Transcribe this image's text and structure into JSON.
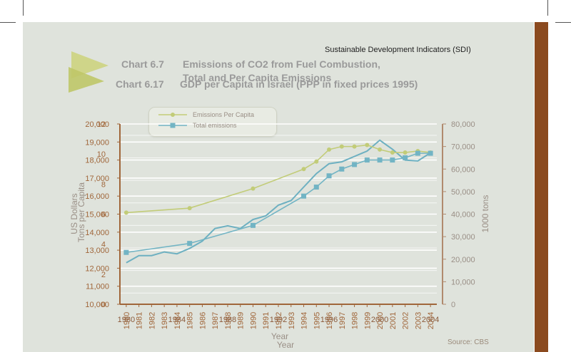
{
  "header": {
    "title": "Sustainable Development Indicators (SDI)"
  },
  "titles": {
    "chart_a_num": "Chart 6.7",
    "chart_a_title_line1": "Emissions of CO2 from Fuel Combustion,",
    "chart_a_title_line2": "Total and Per Capita Emissions",
    "chart_b_num": "Chart 6.17",
    "chart_b_title": "GDP per Capita in Israel (PPP in fixed prices 1995)"
  },
  "source": "Source: CBS",
  "colors": {
    "panel": "#dfe3dc",
    "accent": "#8b4a1f",
    "axis": "#a0663a",
    "emissions_per_capita": "#c2cc78",
    "total_emissions": "#72b4c4",
    "gdp": "#6db0c1"
  },
  "chart_data": [
    {
      "type": "line",
      "title": "Emissions of CO2 from Fuel Combustion, Total and Per Capita Emissions",
      "xlabel": "Year",
      "ylabel_left": "Tons per Capita",
      "ylabel_right": "1000 tons",
      "x_ticks": [
        "1980",
        "1984",
        "1988",
        "1992",
        "1996",
        "2000",
        "2004"
      ],
      "ylim_left": [
        0,
        12
      ],
      "yticks_left": [
        "0",
        "2",
        "4",
        "6",
        "8",
        "10",
        "12"
      ],
      "ylim_right": [
        0,
        80000
      ],
      "yticks_right": [
        "0",
        "10,000",
        "20,000",
        "30,000",
        "40,000",
        "50,000",
        "60,000",
        "70,000",
        "80,000"
      ],
      "legend_position": "top-left",
      "series": [
        {
          "name": "Emissions Per Capita",
          "axis": "left",
          "x": [
            1980,
            1985,
            1990,
            1994,
            1995,
            1996,
            1997,
            1998,
            1999,
            2000,
            2001,
            2002,
            2003,
            2004
          ],
          "values": [
            6.1,
            6.4,
            7.7,
            9.0,
            9.5,
            10.3,
            10.5,
            10.5,
            10.6,
            10.3,
            10.1,
            10.1,
            10.2,
            10.1
          ]
        },
        {
          "name": "Total emissions",
          "axis": "right",
          "x": [
            1980,
            1985,
            1990,
            1994,
            1995,
            1996,
            1997,
            1998,
            1999,
            2000,
            2001,
            2002,
            2003,
            2004
          ],
          "values": [
            23000,
            27000,
            35000,
            48000,
            52000,
            57000,
            60000,
            62000,
            64000,
            64000,
            64000,
            65000,
            67000,
            67000
          ]
        }
      ]
    },
    {
      "type": "line",
      "title": "GDP per Capita in Israel (PPP in fixed prices 1995)",
      "xlabel": "Year",
      "ylabel": "US Dollars",
      "ylim": [
        10000,
        20000
      ],
      "yticks": [
        "10,000",
        "11,000",
        "12,000",
        "13,000",
        "14,000",
        "15,000",
        "16,000",
        "17,000",
        "18,000",
        "19,000",
        "20,000"
      ],
      "categories": [
        "1980",
        "1981",
        "1982",
        "1983",
        "1984",
        "1985",
        "1986",
        "1987",
        "1988",
        "1989",
        "1990",
        "1991",
        "1992",
        "1993",
        "1994",
        "1995",
        "1996",
        "1997",
        "1998",
        "1999",
        "2000",
        "2001",
        "2002",
        "2003",
        "2004"
      ],
      "series": [
        {
          "name": "",
          "values": [
            12300,
            12700,
            12700,
            12900,
            12800,
            13100,
            13500,
            14200,
            14350,
            14200,
            14700,
            14900,
            15500,
            15750,
            16500,
            17250,
            17800,
            17900,
            18200,
            18500,
            19100,
            18600,
            18000,
            17950,
            18400
          ]
        }
      ]
    }
  ]
}
